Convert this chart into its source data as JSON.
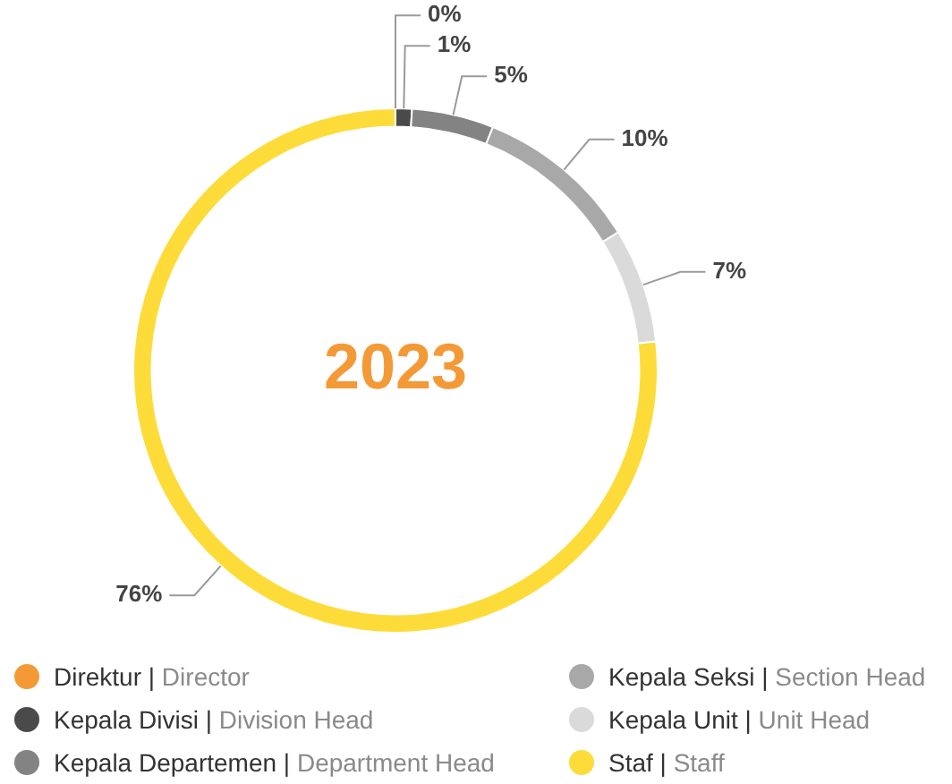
{
  "chart_data": {
    "type": "donut",
    "title": "2023",
    "categories": [
      "Direktur | Director",
      "Kepala Divisi | Division Head",
      "Kepala Departemen | Department Head",
      "Kepala Seksi | Section Head",
      "Kepala Unit | Unit Head",
      "Staf | Staff"
    ],
    "values": [
      0,
      1,
      5,
      10,
      7,
      76
    ],
    "colors": [
      "#f39a37",
      "#4a4a4a",
      "#838383",
      "#a8a8a8",
      "#dadada",
      "#fddc3a"
    ],
    "value_labels": [
      "0%",
      "1%",
      "5%",
      "10%",
      "7%",
      "76%"
    ],
    "legend": "bottom"
  }
}
